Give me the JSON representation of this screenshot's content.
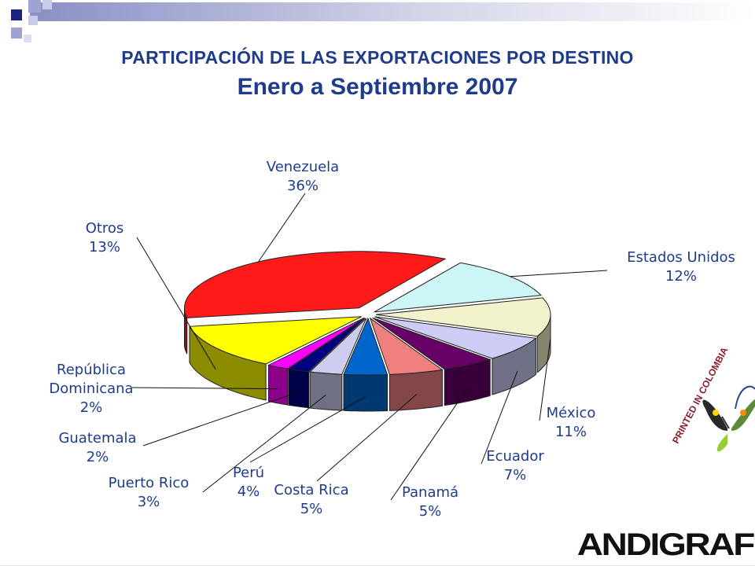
{
  "slide": {
    "title": "PARTICIPACIÓN DE LAS EXPORTACIONES POR DESTINO",
    "subtitle": "Enero a Septiembre 2007",
    "brand": "ANDIGRAF",
    "stamp": "PRINTED IN COLOMBIA",
    "colors": {
      "title": "#1f3b8c",
      "header_square": "#1a237e"
    }
  },
  "chart_data": {
    "type": "pie",
    "style": "3d-exploded",
    "title": "PARTICIPACIÓN DE LAS EXPORTACIONES POR DESTINO",
    "subtitle": "Enero a Septiembre 2007",
    "legend": "none",
    "slices": [
      {
        "label": "Venezuela",
        "value": 36,
        "text": "36%",
        "color": "#ff1a1a"
      },
      {
        "label": "Estados Unidos",
        "value": 12,
        "text": "12%",
        "color": "#ccf5f5"
      },
      {
        "label": "México",
        "value": 11,
        "text": "11%",
        "color": "#f2f2cc"
      },
      {
        "label": "Ecuador",
        "value": 7,
        "text": "7%",
        "color": "#ccccf5"
      },
      {
        "label": "Panamá",
        "value": 5,
        "text": "5%",
        "color": "#660066"
      },
      {
        "label": "Costa Rica",
        "value": 5,
        "text": "5%",
        "color": "#f08080"
      },
      {
        "label": "Perú",
        "value": 4,
        "text": "4%",
        "color": "#0066cc"
      },
      {
        "label": "Puerto Rico",
        "value": 3,
        "text": "3%",
        "color": "#ccccee"
      },
      {
        "label": "Guatemala",
        "value": 2,
        "text": "2%",
        "color": "#000080"
      },
      {
        "label": "República Dominicana",
        "value": 2,
        "text": "2%",
        "color": "#ff00ff"
      },
      {
        "label": "Otros",
        "value": 13,
        "text": "13%",
        "color": "#ffff00"
      }
    ]
  }
}
